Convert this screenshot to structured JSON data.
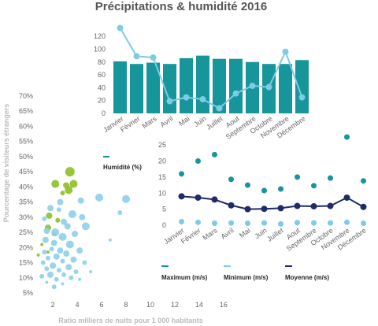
{
  "title": "Précipitations & humidité 2016",
  "chart_data": [
    {
      "type": "bar",
      "categories": [
        "Janvier",
        "Février",
        "Mars",
        "Avril",
        "Mai",
        "Juin",
        "Juillet",
        "Aout",
        "Septembre",
        "Octobre",
        "Novembre",
        "Décembre"
      ],
      "series": [
        {
          "name": "Humidité (%)",
          "kind": "bar",
          "color": "#16959a",
          "values": [
            81,
            77,
            79,
            77,
            86,
            90,
            85,
            85,
            80,
            77,
            77,
            83
          ]
        },
        {
          "name": "",
          "kind": "line",
          "color": "#7ecbe6",
          "values": [
            133,
            89,
            87,
            19,
            25,
            22,
            8,
            31,
            43,
            41,
            96,
            25
          ]
        }
      ],
      "ylim": [
        0,
        130
      ],
      "yticks": [
        0,
        20,
        40,
        60,
        80,
        100,
        120
      ],
      "legend": "Humidité (%)"
    },
    {
      "type": "scatter",
      "categories": [
        "Janvier",
        "Février",
        "Mars",
        "Avril",
        "Mai",
        "Juin",
        "Juillet",
        "Aout",
        "Septembre",
        "Octobre",
        "Novembre",
        "Décembre"
      ],
      "series": [
        {
          "name": "Maximum (m/s)",
          "color": "#16959a",
          "values": [
            16,
            20,
            22,
            14.3,
            12.5,
            10.8,
            11.3,
            15,
            12.3,
            14.7,
            27.5,
            13.8
          ]
        },
        {
          "name": "Minimum (m/s)",
          "color": "#7ecbe6",
          "values": [
            1.1,
            0.9,
            0.6,
            0.7,
            0.6,
            0.7,
            0.4,
            0.8,
            0.7,
            0.7,
            0.9,
            0.6
          ]
        },
        {
          "name": "Moyenne (m/s)",
          "color": "#1e2b66",
          "values": [
            9,
            8.6,
            8,
            6.2,
            5,
            5.1,
            5.3,
            6,
            5.9,
            6,
            8.6,
            5.7
          ]
        }
      ],
      "ylim": [
        0,
        27
      ],
      "yticks": [
        0,
        5,
        10,
        15,
        20,
        25
      ]
    },
    {
      "type": "scatter",
      "xlabel": "Ratio milliers de nuits pour 1 000 habitants",
      "ylabel": "Pourcentage de visiteurs étrangers",
      "xlim": [
        0.7,
        16.2
      ],
      "ylim": [
        5,
        70
      ],
      "xticks": [
        2,
        4,
        6,
        8,
        10,
        12,
        14,
        16
      ],
      "yticks": [
        5,
        10,
        15,
        20,
        25,
        30,
        35,
        40,
        45,
        50,
        55,
        60,
        65,
        70
      ],
      "ytick_labels": [
        "5%",
        "10%",
        "15%",
        "20%",
        "25%",
        "30%",
        "35%",
        "40%",
        "45%",
        "50%",
        "55%",
        "60%",
        "65%",
        "70%"
      ],
      "points": [
        {
          "x": 3.4,
          "y": 45,
          "size": 6,
          "color": "#8cbf26"
        },
        {
          "x": 3.7,
          "y": 41,
          "size": 5,
          "color": "#8cbf26"
        },
        {
          "x": 3.1,
          "y": 40.5,
          "size": 4,
          "color": "#8cbf26"
        },
        {
          "x": 2.2,
          "y": 41,
          "size": 5,
          "color": "#8cbf26"
        },
        {
          "x": 3.3,
          "y": 39,
          "size": 5,
          "color": "#8cbf26"
        },
        {
          "x": 2.8,
          "y": 38,
          "size": 3,
          "color": "#8cbf26"
        },
        {
          "x": 1.7,
          "y": 30.5,
          "size": 4,
          "color": "#8cbf26"
        },
        {
          "x": 2.4,
          "y": 29,
          "size": 3,
          "color": "#8cbf26"
        },
        {
          "x": 1.6,
          "y": 26.5,
          "size": 4,
          "color": "#8cbf26"
        },
        {
          "x": 2.1,
          "y": 24.5,
          "size": 3,
          "color": "#8cbf26"
        },
        {
          "x": 1.6,
          "y": 18.5,
          "size": 2,
          "color": "#8cbf26"
        },
        {
          "x": 0.8,
          "y": 17.5,
          "size": 2,
          "color": "#8cbf26"
        },
        {
          "x": 1.1,
          "y": 21,
          "size": 2,
          "color": "#8cbf26"
        },
        {
          "x": 8,
          "y": 36,
          "size": 5,
          "color": "#8ed0e8"
        },
        {
          "x": 5.8,
          "y": 36.5,
          "size": 5,
          "color": "#8ed0e8"
        },
        {
          "x": 7.5,
          "y": 31.5,
          "size": 3,
          "color": "#8ed0e8"
        },
        {
          "x": 4.3,
          "y": 35.5,
          "size": 4,
          "color": "#8ed0e8"
        },
        {
          "x": 2.6,
          "y": 35,
          "size": 4,
          "color": "#8ed0e8"
        },
        {
          "x": 1.8,
          "y": 33,
          "size": 4,
          "color": "#8ed0e8"
        },
        {
          "x": 2.5,
          "y": 32.5,
          "size": 3,
          "color": "#8ed0e8"
        },
        {
          "x": 3.6,
          "y": 31,
          "size": 5,
          "color": "#8ed0e8"
        },
        {
          "x": 4.4,
          "y": 30,
          "size": 4,
          "color": "#8ed0e8"
        },
        {
          "x": 1.3,
          "y": 29.5,
          "size": 3,
          "color": "#8ed0e8"
        },
        {
          "x": 2.9,
          "y": 28.5,
          "size": 4,
          "color": "#8ed0e8"
        },
        {
          "x": 4.7,
          "y": 27,
          "size": 5,
          "color": "#8ed0e8"
        },
        {
          "x": 3.2,
          "y": 27,
          "size": 4,
          "color": "#8ed0e8"
        },
        {
          "x": 1.5,
          "y": 25.5,
          "size": 4,
          "color": "#8ed0e8"
        },
        {
          "x": 2.2,
          "y": 25,
          "size": 5,
          "color": "#8ed0e8"
        },
        {
          "x": 3.8,
          "y": 24.5,
          "size": 4,
          "color": "#8ed0e8"
        },
        {
          "x": 2.8,
          "y": 23.5,
          "size": 5,
          "color": "#8ed0e8"
        },
        {
          "x": 1.4,
          "y": 22.5,
          "size": 4,
          "color": "#8ed0e8"
        },
        {
          "x": 2.1,
          "y": 21.5,
          "size": 4,
          "color": "#8ed0e8"
        },
        {
          "x": 3.4,
          "y": 21,
          "size": 5,
          "color": "#8ed0e8"
        },
        {
          "x": 6.7,
          "y": 22.5,
          "size": 2,
          "color": "#8ed0e8"
        },
        {
          "x": 1.9,
          "y": 19.5,
          "size": 3,
          "color": "#8ed0e8"
        },
        {
          "x": 2.6,
          "y": 19,
          "size": 4,
          "color": "#8ed0e8"
        },
        {
          "x": 4.2,
          "y": 19,
          "size": 4,
          "color": "#8ed0e8"
        },
        {
          "x": 1.3,
          "y": 18.5,
          "size": 3,
          "color": "#8ed0e8"
        },
        {
          "x": 3.1,
          "y": 18,
          "size": 4,
          "color": "#8ed0e8"
        },
        {
          "x": 2.3,
          "y": 17,
          "size": 4,
          "color": "#8ed0e8"
        },
        {
          "x": 1.6,
          "y": 16.5,
          "size": 3,
          "color": "#8ed0e8"
        },
        {
          "x": 3.7,
          "y": 16,
          "size": 4,
          "color": "#8ed0e8"
        },
        {
          "x": 2.8,
          "y": 15.5,
          "size": 3,
          "color": "#8ed0e8"
        },
        {
          "x": 1.2,
          "y": 15,
          "size": 3,
          "color": "#8ed0e8"
        },
        {
          "x": 4.6,
          "y": 15,
          "size": 3,
          "color": "#8ed0e8"
        },
        {
          "x": 2,
          "y": 14,
          "size": 4,
          "color": "#8ed0e8"
        },
        {
          "x": 3.3,
          "y": 13.5,
          "size": 4,
          "color": "#8ed0e8"
        },
        {
          "x": 1.5,
          "y": 13,
          "size": 3,
          "color": "#8ed0e8"
        },
        {
          "x": 2.5,
          "y": 12.5,
          "size": 3,
          "color": "#8ed0e8"
        },
        {
          "x": 3.9,
          "y": 12,
          "size": 3,
          "color": "#8ed0e8"
        },
        {
          "x": 5.1,
          "y": 12,
          "size": 2,
          "color": "#8ed0e8"
        },
        {
          "x": 1.8,
          "y": 11,
          "size": 4,
          "color": "#8ed0e8"
        },
        {
          "x": 2.9,
          "y": 11,
          "size": 3,
          "color": "#8ed0e8"
        },
        {
          "x": 1.1,
          "y": 10.5,
          "size": 3,
          "color": "#8ed0e8"
        },
        {
          "x": 3.5,
          "y": 10,
          "size": 3,
          "color": "#8ed0e8"
        },
        {
          "x": 2.3,
          "y": 9.5,
          "size": 3,
          "color": "#8ed0e8"
        },
        {
          "x": 4.2,
          "y": 9.5,
          "size": 2,
          "color": "#8ed0e8"
        },
        {
          "x": 1.5,
          "y": 8.5,
          "size": 2,
          "color": "#8ed0e8"
        },
        {
          "x": 2.8,
          "y": 8,
          "size": 2,
          "color": "#8ed0e8"
        },
        {
          "x": 2.1,
          "y": 7,
          "size": 3,
          "color": "#8ed0e8"
        }
      ]
    }
  ]
}
